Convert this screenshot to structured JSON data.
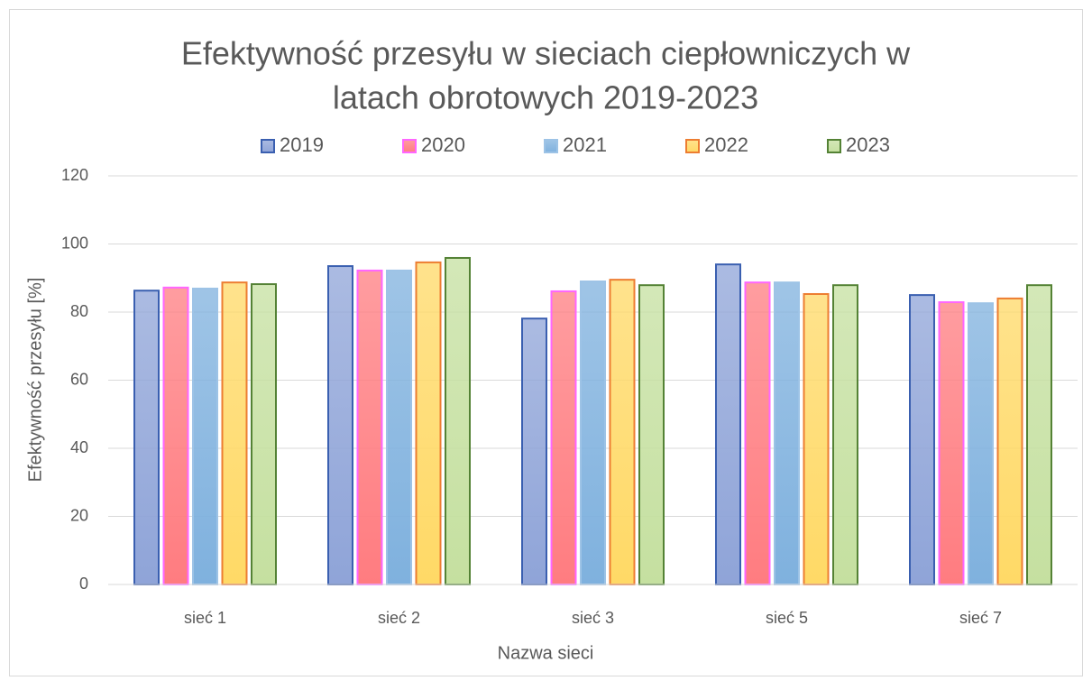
{
  "chart_data": {
    "type": "bar",
    "title": [
      "Efektywność przesyłu w sieciach ciepłowniczych w",
      "latach obrotowych 2019-2023"
    ],
    "xlabel": "Nazwa sieci",
    "ylabel": "Efektywność przesyłu [%]",
    "categories": [
      "sieć 1",
      "sieć 2",
      "sieć 3",
      "sieć 5",
      "sieć 7"
    ],
    "series": [
      {
        "name": "2019",
        "color": "#8fa4d8",
        "edgecolor": "#3a5fb0",
        "values": [
          86.3,
          93.5,
          78.1,
          94.0,
          85.0
        ]
      },
      {
        "name": "2020",
        "color": "#ff7c80",
        "edgecolor": "#ff66ff",
        "values": [
          87.2,
          92.2,
          86.1,
          88.7,
          82.9
        ]
      },
      {
        "name": "2021",
        "color": "#7fb1de",
        "edgecolor": "#9dc3e6",
        "values": [
          86.9,
          92.2,
          89.0,
          88.7,
          82.6
        ]
      },
      {
        "name": "2022",
        "color": "#ffd966",
        "edgecolor": "#ed7d31",
        "values": [
          88.7,
          94.6,
          89.5,
          85.3,
          84.0
        ]
      },
      {
        "name": "2023",
        "color": "#c5e0a0",
        "edgecolor": "#548235",
        "values": [
          88.2,
          95.9,
          87.9,
          87.9,
          87.9
        ]
      }
    ],
    "ylim": [
      0,
      120
    ],
    "yticks": [
      0,
      20,
      40,
      60,
      80,
      100,
      120
    ],
    "grid": true,
    "legend": "top"
  }
}
